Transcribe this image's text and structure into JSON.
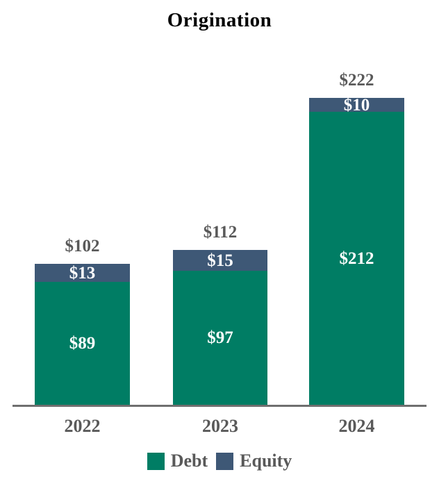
{
  "title": "Origination",
  "colors": {
    "debt": "#007D64",
    "equity": "#3E5876",
    "label_gray": "#595959",
    "axis": "#6F6F6F",
    "bar_label": "#FFFFFF",
    "title_color": "#000000"
  },
  "legend": [
    {
      "label": "Debt",
      "color_key": "debt"
    },
    {
      "label": "Equity",
      "color_key": "equity"
    }
  ],
  "x_labels": [
    "2022",
    "2023",
    "2024"
  ],
  "chart_data": {
    "type": "bar",
    "stacked": true,
    "title": "Origination",
    "xlabel": "",
    "ylabel": "",
    "categories": [
      "2022",
      "2023",
      "2024"
    ],
    "series": [
      {
        "name": "Debt",
        "color": "#007D64",
        "values": [
          89,
          97,
          212
        ]
      },
      {
        "name": "Equity",
        "color": "#3E5876",
        "values": [
          13,
          15,
          10
        ]
      }
    ],
    "totals": [
      102,
      112,
      222
    ],
    "total_labels": [
      "$102",
      "$112",
      "$222"
    ],
    "segment_labels": {
      "debt": [
        "$89",
        "$97",
        "$212"
      ],
      "equity": [
        "$13",
        "$15",
        "$10"
      ]
    },
    "value_prefix": "$",
    "grid": false,
    "legend_position": "bottom",
    "axes_shown": "x-only",
    "ylim": [
      0,
      233
    ]
  }
}
